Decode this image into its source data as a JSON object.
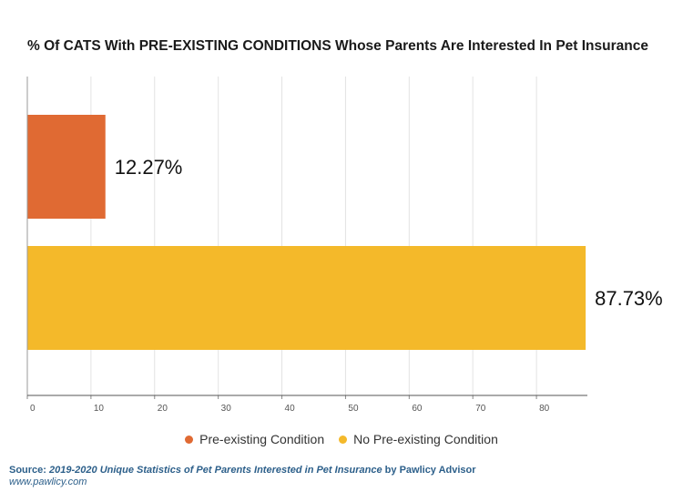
{
  "chart_data": {
    "type": "bar",
    "orientation": "horizontal",
    "title": "% Of CATS With PRE-EXISTING CONDITIONS Whose Parents Are Interested In Pet Insurance",
    "categories": [
      "Pre-existing Condition",
      "No Pre-existing Condition"
    ],
    "values": [
      12.27,
      87.73
    ],
    "value_labels": [
      "12.27%",
      "87.73%"
    ],
    "colors": [
      "#e06a33",
      "#f4b92a"
    ],
    "xlim": [
      0,
      88
    ],
    "xticks": [
      0,
      10,
      20,
      30,
      40,
      50,
      60,
      70,
      80
    ],
    "grid": true,
    "legend": "bottom-center"
  },
  "legend": {
    "items": [
      {
        "label": "Pre-existing Condition",
        "color": "#e06a33"
      },
      {
        "label": "No Pre-existing Condition",
        "color": "#f4b92a"
      }
    ]
  },
  "source": {
    "prefix": "Source:",
    "title": "2019-2020 Unique Statistics of Pet Parents Interested in Pet Insurance",
    "by": "by Pawlicy Advisor",
    "url": "www.pawlicy.com"
  }
}
